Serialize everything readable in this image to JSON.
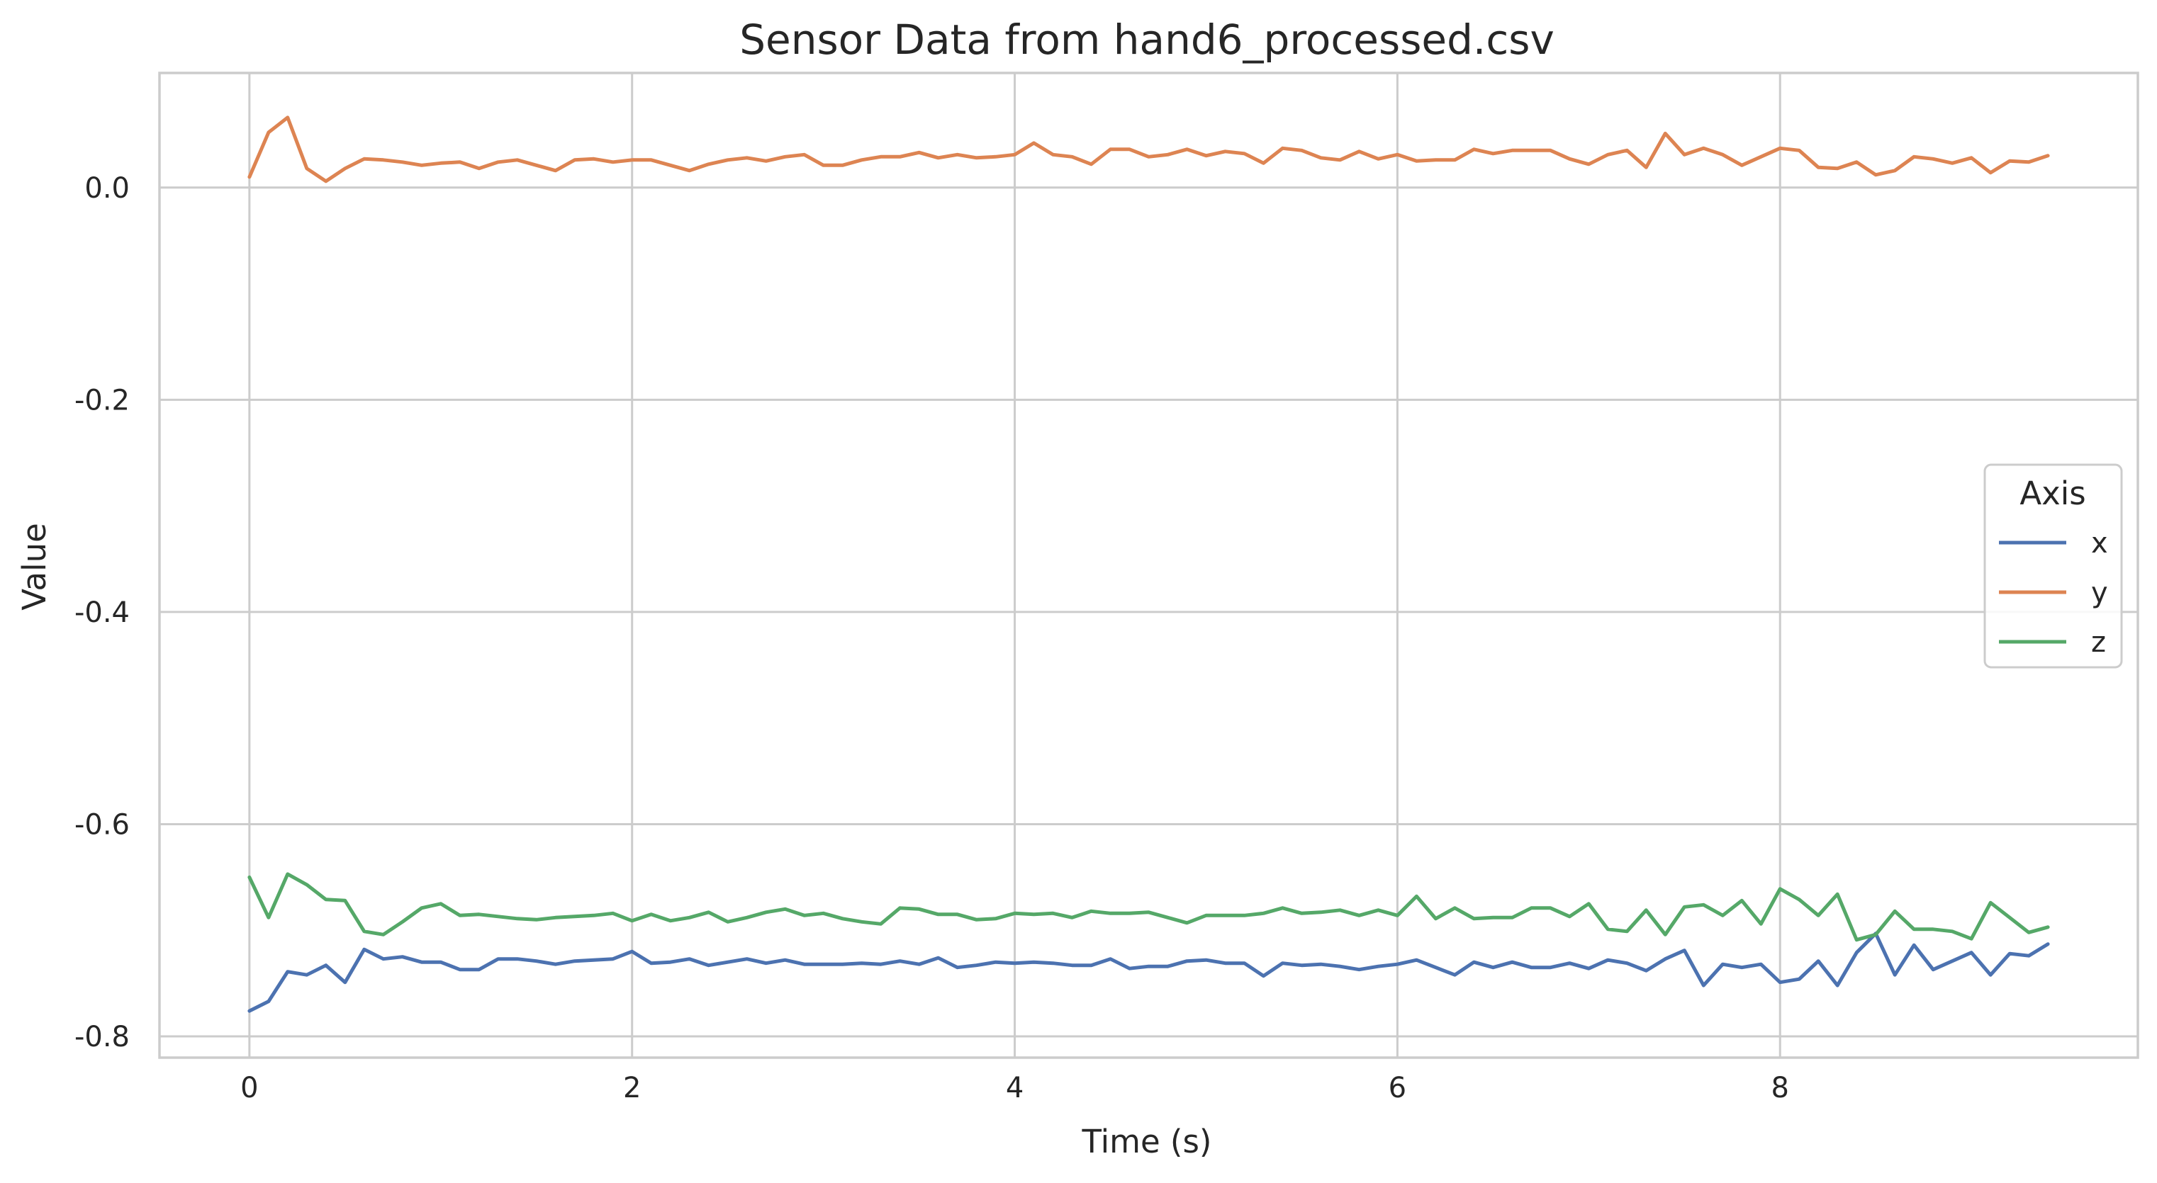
{
  "chart_data": {
    "type": "line",
    "title": "Sensor Data from hand6_processed.csv",
    "xlabel": "Time (s)",
    "ylabel": "Value",
    "xlim": [
      -0.47,
      9.87
    ],
    "ylim": [
      -0.82,
      0.108
    ],
    "xticks": [
      0,
      2,
      4,
      6,
      8
    ],
    "xtick_labels": [
      "0",
      "2",
      "4",
      "6",
      "8"
    ],
    "yticks": [
      0.0,
      -0.2,
      -0.4,
      -0.6,
      -0.8
    ],
    "ytick_labels": [
      "0.0",
      "-0.2",
      "-0.4",
      "-0.6",
      "-0.8"
    ],
    "grid": true,
    "legend": {
      "title": "Axis",
      "position": "center-right"
    },
    "x": [
      0.0,
      0.1,
      0.2,
      0.3,
      0.4,
      0.5,
      0.6,
      0.7,
      0.8,
      0.9,
      1.0,
      1.1,
      1.2,
      1.3,
      1.4,
      1.5,
      1.6,
      1.7,
      1.8,
      1.9,
      2.0,
      2.1,
      2.2,
      2.3,
      2.4,
      2.5,
      2.6,
      2.7,
      2.8,
      2.9,
      3.0,
      3.1,
      3.2,
      3.3,
      3.4,
      3.5,
      3.6,
      3.7,
      3.8,
      3.9,
      4.0,
      4.1,
      4.2,
      4.3,
      4.4,
      4.5,
      4.6,
      4.7,
      4.8,
      4.9,
      5.0,
      5.1,
      5.2,
      5.3,
      5.4,
      5.5,
      5.6,
      5.7,
      5.8,
      5.9,
      6.0,
      6.1,
      6.2,
      6.3,
      6.4,
      6.5,
      6.6,
      6.7,
      6.8,
      6.9,
      7.0,
      7.1,
      7.2,
      7.3,
      7.4,
      7.5,
      7.6,
      7.7,
      7.8,
      7.9,
      8.0,
      8.1,
      8.2,
      8.3,
      8.4,
      8.5,
      8.6,
      8.7,
      8.8,
      8.9,
      9.0,
      9.1,
      9.2,
      9.3,
      9.4
    ],
    "series": [
      {
        "name": "x",
        "color": "#4c72b0",
        "values": [
          -0.776,
          -0.767,
          -0.739,
          -0.742,
          -0.733,
          -0.749,
          -0.718,
          -0.727,
          -0.725,
          -0.73,
          -0.73,
          -0.737,
          -0.737,
          -0.727,
          -0.727,
          -0.729,
          -0.732,
          -0.729,
          -0.728,
          -0.727,
          -0.72,
          -0.731,
          -0.73,
          -0.727,
          -0.733,
          -0.73,
          -0.727,
          -0.731,
          -0.728,
          -0.732,
          -0.732,
          -0.732,
          -0.731,
          -0.732,
          -0.729,
          -0.732,
          -0.726,
          -0.735,
          -0.733,
          -0.73,
          -0.731,
          -0.73,
          -0.731,
          -0.733,
          -0.733,
          -0.727,
          -0.736,
          -0.734,
          -0.734,
          -0.729,
          -0.728,
          -0.731,
          -0.731,
          -0.743,
          -0.731,
          -0.733,
          -0.732,
          -0.734,
          -0.737,
          -0.734,
          -0.732,
          -0.728,
          -0.735,
          -0.742,
          -0.73,
          -0.735,
          -0.73,
          -0.735,
          -0.735,
          -0.731,
          -0.736,
          -0.728,
          -0.731,
          -0.738,
          -0.727,
          -0.719,
          -0.752,
          -0.732,
          -0.735,
          -0.732,
          -0.749,
          -0.746,
          -0.729,
          -0.752,
          -0.721,
          -0.703,
          -0.742,
          -0.714,
          -0.737,
          -0.729,
          -0.721,
          -0.742,
          -0.722,
          -0.724,
          -0.713
        ]
      },
      {
        "name": "y",
        "color": "#dd8452",
        "values": [
          0.01,
          0.052,
          0.066,
          0.018,
          0.006,
          0.018,
          0.027,
          0.026,
          0.024,
          0.021,
          0.023,
          0.024,
          0.018,
          0.024,
          0.026,
          0.021,
          0.016,
          0.026,
          0.027,
          0.024,
          0.026,
          0.026,
          0.021,
          0.016,
          0.022,
          0.026,
          0.028,
          0.025,
          0.029,
          0.031,
          0.021,
          0.021,
          0.026,
          0.029,
          0.029,
          0.033,
          0.028,
          0.031,
          0.028,
          0.029,
          0.031,
          0.042,
          0.031,
          0.029,
          0.022,
          0.036,
          0.036,
          0.029,
          0.031,
          0.036,
          0.03,
          0.034,
          0.032,
          0.023,
          0.037,
          0.035,
          0.028,
          0.026,
          0.034,
          0.027,
          0.031,
          0.025,
          0.026,
          0.026,
          0.036,
          0.032,
          0.035,
          0.035,
          0.035,
          0.027,
          0.022,
          0.031,
          0.035,
          0.019,
          0.051,
          0.031,
          0.037,
          0.031,
          0.021,
          0.029,
          0.037,
          0.035,
          0.019,
          0.018,
          0.024,
          0.012,
          0.016,
          0.029,
          0.027,
          0.023,
          0.028,
          0.014,
          0.025,
          0.024,
          0.03
        ]
      },
      {
        "name": "z",
        "color": "#55a868",
        "values": [
          -0.65,
          -0.688,
          -0.647,
          -0.657,
          -0.671,
          -0.672,
          -0.701,
          -0.704,
          -0.692,
          -0.679,
          -0.675,
          -0.686,
          -0.685,
          -0.687,
          -0.689,
          -0.69,
          -0.688,
          -0.687,
          -0.686,
          -0.684,
          -0.691,
          -0.685,
          -0.691,
          -0.688,
          -0.683,
          -0.692,
          -0.688,
          -0.683,
          -0.68,
          -0.686,
          -0.684,
          -0.689,
          -0.692,
          -0.694,
          -0.679,
          -0.68,
          -0.685,
          -0.685,
          -0.69,
          -0.689,
          -0.684,
          -0.685,
          -0.684,
          -0.688,
          -0.682,
          -0.684,
          -0.684,
          -0.683,
          -0.688,
          -0.693,
          -0.686,
          -0.686,
          -0.686,
          -0.684,
          -0.679,
          -0.684,
          -0.683,
          -0.681,
          -0.686,
          -0.681,
          -0.686,
          -0.668,
          -0.689,
          -0.679,
          -0.689,
          -0.688,
          -0.688,
          -0.679,
          -0.679,
          -0.687,
          -0.675,
          -0.699,
          -0.701,
          -0.681,
          -0.704,
          -0.678,
          -0.676,
          -0.686,
          -0.672,
          -0.694,
          -0.661,
          -0.671,
          -0.686,
          -0.666,
          -0.709,
          -0.704,
          -0.682,
          -0.699,
          -0.699,
          -0.701,
          -0.708,
          -0.674,
          -0.688,
          -0.702,
          -0.697
        ]
      }
    ]
  }
}
